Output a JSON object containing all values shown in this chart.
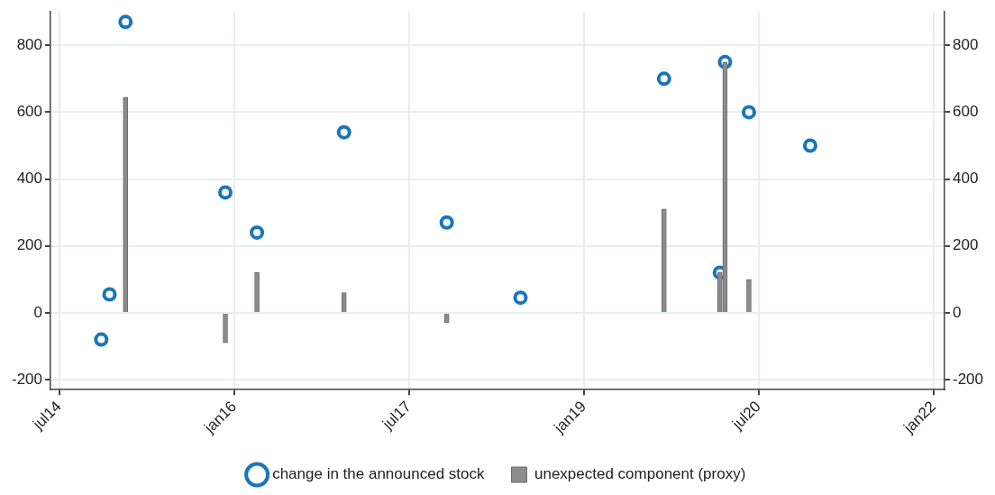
{
  "chart_data": {
    "type": "scatter",
    "series": [
      {
        "name": "change in the announced stock",
        "color": "#1a76bb",
        "x": [
          "2014-11-10",
          "2014-12-06",
          "2015-01-25",
          "2015-12-04",
          "2016-03-12",
          "2016-12-10",
          "2017-10-28",
          "2018-06-16",
          "2019-09-09",
          "2020-03-02",
          "2020-03-18",
          "2020-06-01",
          "2020-12-10"
        ],
        "values": [
          -80,
          55,
          870,
          360,
          240,
          540,
          270,
          45,
          700,
          120,
          750,
          600,
          500
        ]
      },
      {
        "name": "unexpected component (proxy)",
        "type": "bar",
        "color": "#8c8c8c",
        "x": [
          "2015-01-25",
          "2015-12-04",
          "2016-03-12",
          "2016-12-10",
          "2017-10-28",
          "2019-09-09",
          "2020-03-02",
          "2020-03-18",
          "2020-06-01"
        ],
        "values": [
          645,
          -90,
          120,
          60,
          -30,
          310,
          120,
          750,
          100
        ]
      }
    ],
    "xlim": [
      "2014-06-04",
      "2022-02-04"
    ],
    "xticks": [
      {
        "value": "2014-07-01",
        "label": "jul14"
      },
      {
        "value": "2016-01-01",
        "label": "jan16"
      },
      {
        "value": "2017-07-01",
        "label": "jul17"
      },
      {
        "value": "2019-01-01",
        "label": "jan19"
      },
      {
        "value": "2020-07-01",
        "label": "jul20"
      },
      {
        "value": "2022-01-01",
        "label": "jan22"
      }
    ],
    "ylim": [
      -230,
      900
    ],
    "yticks": [
      -200,
      0,
      200,
      400,
      600,
      800
    ],
    "y2lim": [
      -230,
      900
    ],
    "y2ticks": [
      -200,
      0,
      200,
      400,
      600,
      800
    ],
    "grid": true,
    "legend": "bottom",
    "marker": "circle"
  }
}
